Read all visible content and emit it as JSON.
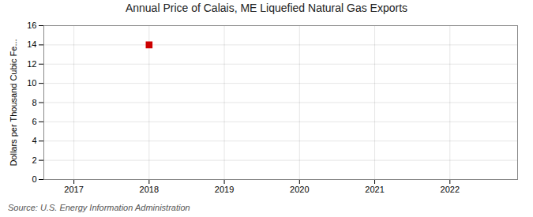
{
  "chart_data": {
    "type": "scatter",
    "title": "Annual Price of Calais, ME  Liquefied Natural Gas Exports",
    "ylabel": "Dollars per Thousand Cubic Fe...",
    "source": "Source: U.S. Energy Information Administration",
    "x": [
      2018
    ],
    "values": [
      14.0
    ],
    "color": "#cc0000",
    "marker": "square",
    "xlim": [
      2016.6,
      2022.9
    ],
    "ylim": [
      0,
      16
    ],
    "xticks": [
      2017,
      2018,
      2019,
      2020,
      2021,
      2022
    ],
    "yticks": [
      0,
      2,
      4,
      6,
      8,
      10,
      12,
      14,
      16
    ],
    "grid": true
  }
}
